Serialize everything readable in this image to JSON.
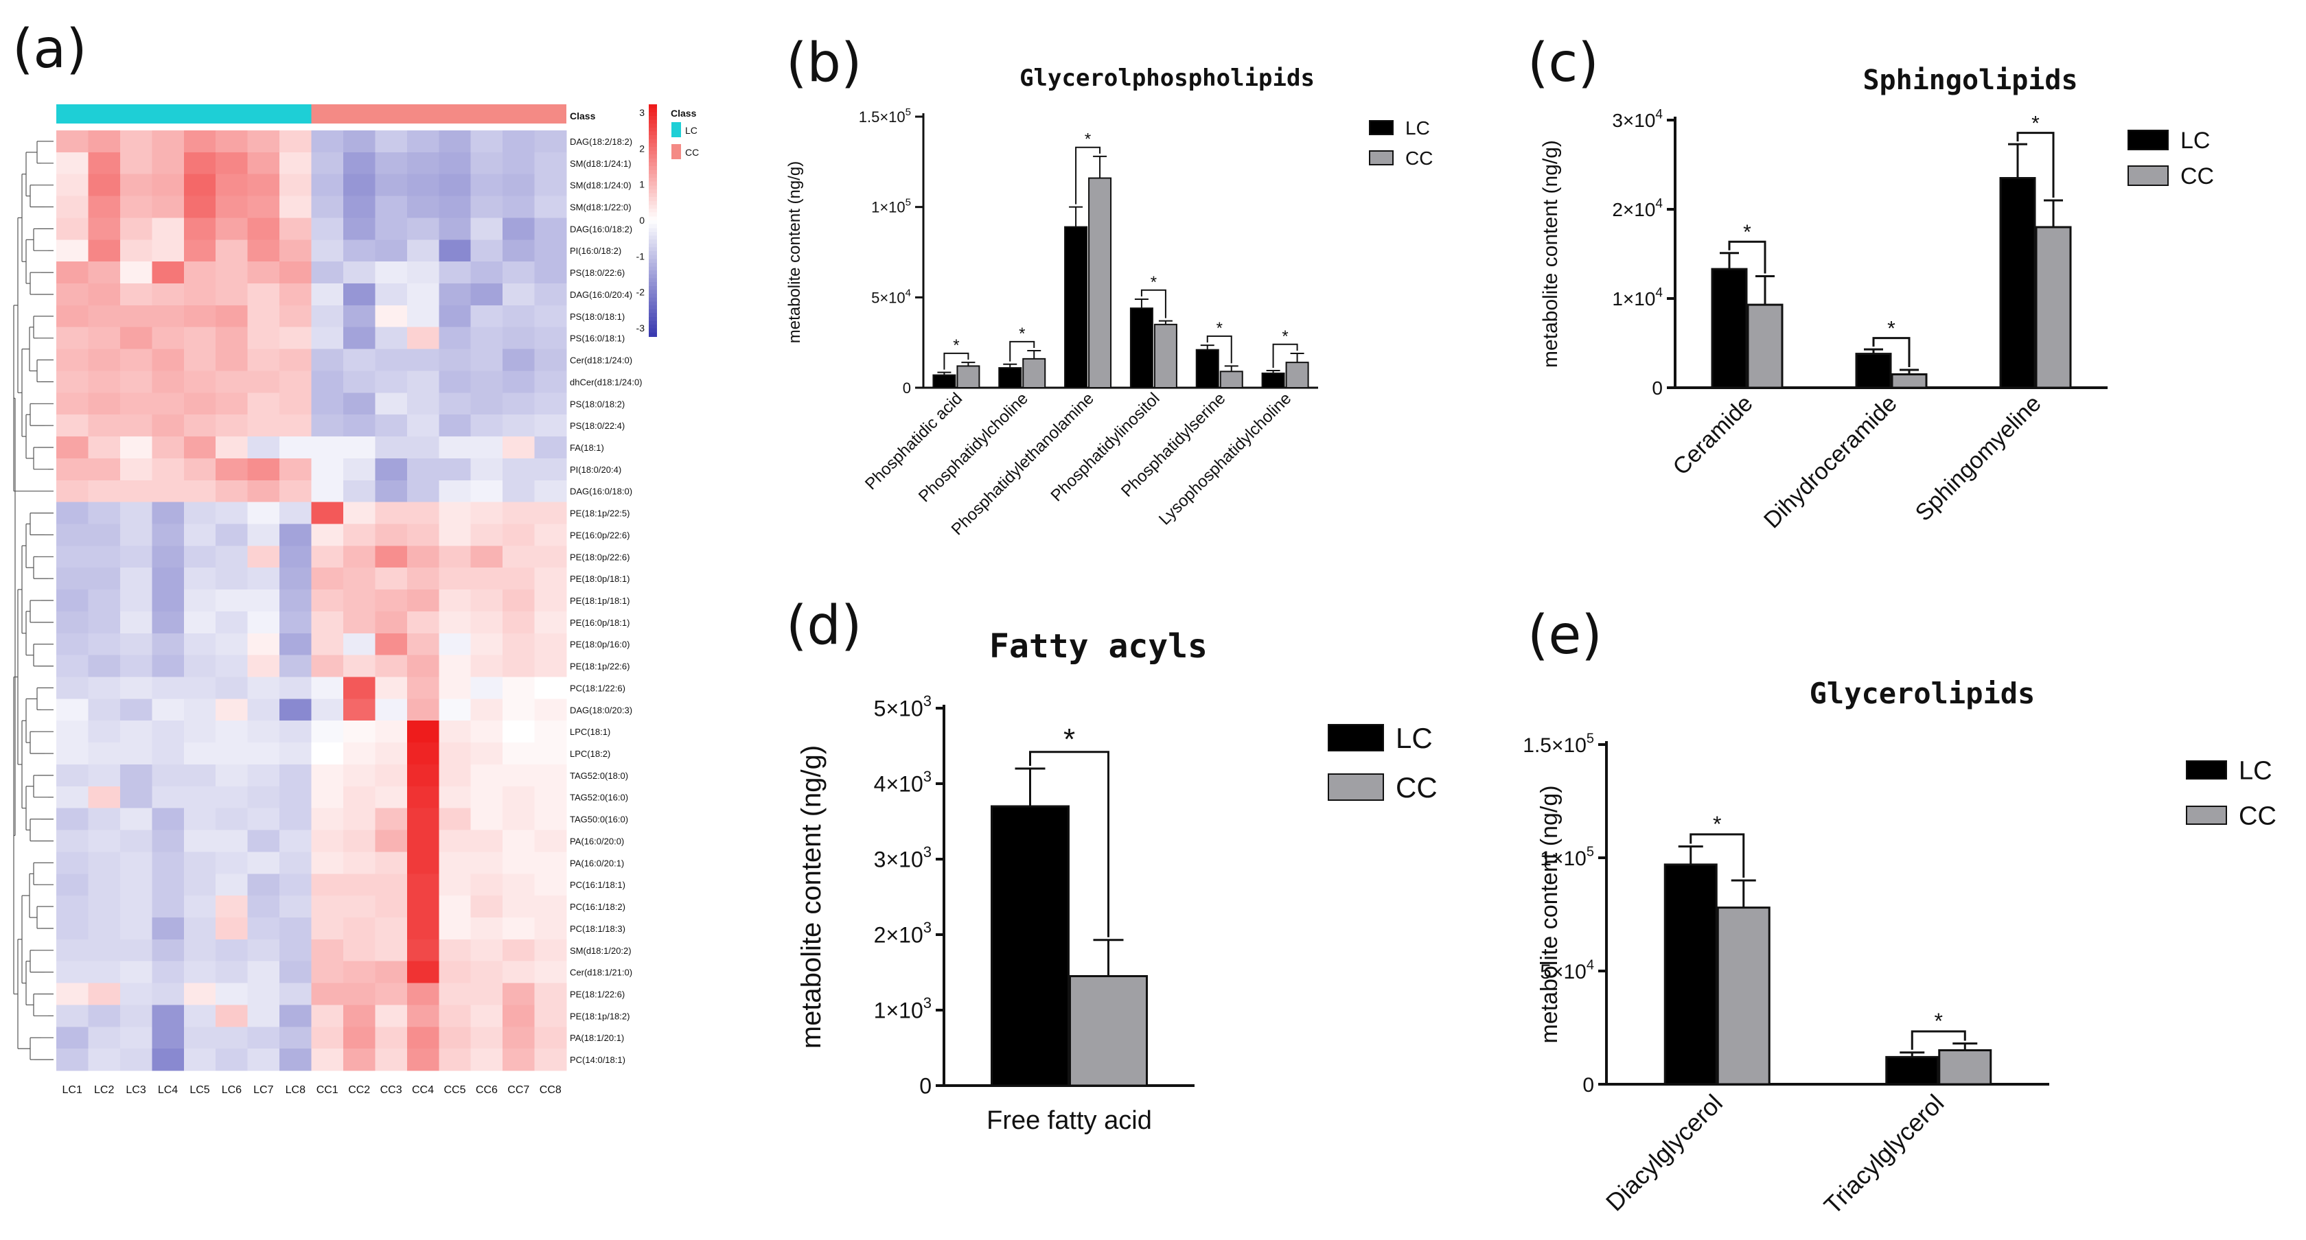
{
  "panel_letters": [
    "(a)",
    "(b)",
    "(c)",
    "(d)",
    "(e)"
  ],
  "colors": {
    "LC": "#000000",
    "CC": "#a0a0a4",
    "lc_class": "#1ecfd6",
    "cc_class": "#f48a85",
    "hm_high": "#ee1c1c",
    "hm_low": "#3a3ab0"
  },
  "heatmap": {
    "class_label": "Class",
    "legend_title": "Class",
    "legend_groups": [
      "LC",
      "CC"
    ],
    "scale_ticks": [
      "3",
      "2",
      "1",
      "0",
      "-1",
      "-2",
      "-3"
    ],
    "columns": [
      "LC1",
      "LC2",
      "LC3",
      "LC4",
      "LC5",
      "LC6",
      "LC7",
      "LC8",
      "CC1",
      "CC2",
      "CC3",
      "CC4",
      "CC5",
      "CC6",
      "CC7",
      "CC8"
    ],
    "rows": [
      "DAG(18:2/18:2)",
      "SM(d18:1/24:1)",
      "SM(d18:1/24:0)",
      "SM(d18:1/22:0)",
      "DAG(16:0/18:2)",
      "PI(16:0/18:2)",
      "PS(18:0/22:6)",
      "DAG(16:0/20:4)",
      "PS(18:0/18:1)",
      "PS(16:0/18:1)",
      "Cer(d18:1/24:0)",
      "dhCer(d18:1/24:0)",
      "PS(18:0/18:2)",
      "PS(18:0/22:4)",
      "FA(18:1)",
      "PI(18:0/20:4)",
      "DAG(16:0/18:0)",
      "PE(18:1p/22:5)",
      "PE(16:0p/22:6)",
      "PE(18:0p/22:6)",
      "PE(18:0p/18:1)",
      "PE(18:1p/18:1)",
      "PE(16:0p/18:1)",
      "PE(18:0p/16:0)",
      "PE(18:1p/22:6)",
      "PC(18:1/22:6)",
      "DAG(18:0/20:3)",
      "LPC(18:1)",
      "LPC(18:2)",
      "TAG52:0(18:0)",
      "TAG52:0(16:0)",
      "TAG50:0(16:0)",
      "PA(16:0/20:0)",
      "PA(16:0/20:1)",
      "PC(16:1/18:1)",
      "PC(16:1/18:2)",
      "PC(18:1/18:3)",
      "SM(d18:1/20:2)",
      "Cer(d18:1/21:0)",
      "PE(18:1/22:6)",
      "PE(18:1p/18:2)",
      "PA(18:1/20:1)",
      "PC(14:0/18:1)"
    ],
    "values": [
      [
        1.0,
        1.2,
        0.8,
        1.0,
        1.4,
        1.2,
        1.0,
        0.6,
        -1.0,
        -1.2,
        -0.8,
        -1.0,
        -1.2,
        -0.8,
        -1.0,
        -0.9
      ],
      [
        0.3,
        1.6,
        0.8,
        1.0,
        1.8,
        1.6,
        1.2,
        0.4,
        -0.9,
        -1.5,
        -1.1,
        -1.2,
        -1.3,
        -0.9,
        -1.0,
        -0.8
      ],
      [
        0.4,
        1.7,
        1.0,
        1.1,
        2.0,
        1.5,
        1.4,
        0.5,
        -1.0,
        -1.6,
        -1.2,
        -1.3,
        -1.4,
        -1.0,
        -1.1,
        -0.8
      ],
      [
        0.5,
        1.5,
        0.9,
        1.0,
        1.9,
        1.4,
        1.3,
        0.4,
        -0.9,
        -1.5,
        -1.0,
        -1.2,
        -1.3,
        -0.9,
        -1.0,
        -0.7
      ],
      [
        0.6,
        1.4,
        0.7,
        0.4,
        1.6,
        1.2,
        1.5,
        0.8,
        -0.7,
        -1.4,
        -1.0,
        -0.9,
        -1.2,
        -0.6,
        -1.4,
        -1.0
      ],
      [
        0.2,
        1.6,
        0.5,
        0.4,
        1.5,
        0.8,
        1.4,
        1.0,
        -0.6,
        -1.0,
        -1.1,
        -0.6,
        -1.8,
        -0.8,
        -1.2,
        -1.0
      ],
      [
        1.2,
        1.0,
        0.2,
        1.8,
        0.9,
        0.8,
        1.0,
        1.2,
        -0.9,
        -0.6,
        -0.3,
        -0.4,
        -0.8,
        -1.0,
        -0.8,
        -1.0
      ],
      [
        1.0,
        1.1,
        0.7,
        0.8,
        0.9,
        0.8,
        0.6,
        0.9,
        -0.4,
        -1.6,
        -0.5,
        -0.3,
        -1.2,
        -1.4,
        -0.6,
        -0.8
      ],
      [
        1.1,
        1.0,
        1.0,
        1.0,
        1.1,
        1.2,
        0.6,
        0.8,
        -0.6,
        -1.2,
        0.2,
        -0.3,
        -1.3,
        -0.7,
        -0.8,
        -0.7
      ],
      [
        0.8,
        0.9,
        1.2,
        0.9,
        0.8,
        1.0,
        0.6,
        0.5,
        -0.5,
        -1.4,
        -0.6,
        0.6,
        -1.0,
        -0.8,
        -0.9,
        -0.8
      ],
      [
        0.9,
        1.0,
        0.9,
        1.1,
        0.8,
        1.0,
        0.7,
        0.8,
        -0.9,
        -0.7,
        -0.8,
        -0.8,
        -0.9,
        -0.8,
        -1.2,
        -0.9
      ],
      [
        0.8,
        0.9,
        0.8,
        1.0,
        0.9,
        0.8,
        0.8,
        0.7,
        -1.0,
        -0.8,
        -0.7,
        -0.6,
        -1.0,
        -0.9,
        -1.0,
        -0.8
      ],
      [
        0.9,
        1.0,
        0.9,
        0.9,
        1.0,
        0.9,
        0.6,
        0.7,
        -1.0,
        -1.2,
        -0.4,
        -0.6,
        -0.8,
        -0.9,
        -0.8,
        -0.7
      ],
      [
        0.6,
        0.8,
        0.8,
        1.0,
        0.8,
        0.7,
        0.6,
        0.6,
        -0.9,
        -1.0,
        -0.8,
        -0.5,
        -1.0,
        -0.7,
        -0.6,
        -0.5
      ],
      [
        1.2,
        0.6,
        0.2,
        0.8,
        1.2,
        0.4,
        -0.5,
        -0.2,
        -0.2,
        -0.2,
        -0.6,
        -0.6,
        -0.3,
        -0.3,
        0.4,
        -0.8
      ],
      [
        0.9,
        0.9,
        0.4,
        0.6,
        0.8,
        1.3,
        1.5,
        0.9,
        -0.2,
        -0.4,
        -1.4,
        -0.8,
        -0.8,
        -0.4,
        -0.6,
        -0.6
      ],
      [
        0.7,
        0.6,
        0.6,
        0.6,
        0.6,
        0.8,
        1.0,
        0.7,
        -0.2,
        -0.6,
        -1.2,
        -0.8,
        -0.3,
        -0.2,
        -0.6,
        -0.4
      ],
      [
        -1.0,
        -0.8,
        -0.6,
        -1.2,
        -0.6,
        -0.5,
        -0.2,
        -0.5,
        2.2,
        0.3,
        0.6,
        0.6,
        0.3,
        0.4,
        0.5,
        0.5
      ],
      [
        -0.9,
        -0.9,
        -0.6,
        -1.1,
        -0.5,
        -0.8,
        -0.4,
        -1.4,
        0.3,
        0.6,
        0.8,
        0.7,
        0.3,
        0.5,
        0.6,
        0.4
      ],
      [
        -0.8,
        -0.8,
        -0.7,
        -1.2,
        -0.7,
        -0.6,
        0.6,
        -1.3,
        0.6,
        0.9,
        1.5,
        1.0,
        0.7,
        1.0,
        0.5,
        0.5
      ],
      [
        -0.9,
        -0.9,
        -0.5,
        -1.3,
        -0.5,
        -0.6,
        -0.5,
        -1.2,
        0.9,
        0.8,
        0.6,
        0.8,
        0.6,
        0.6,
        0.6,
        0.4
      ],
      [
        -1.0,
        -0.8,
        -0.5,
        -1.3,
        -0.4,
        -0.3,
        -0.3,
        -1.1,
        0.7,
        0.8,
        0.9,
        1.0,
        0.4,
        0.5,
        0.7,
        0.4
      ],
      [
        -0.9,
        -0.8,
        -0.4,
        -1.2,
        -0.3,
        -0.5,
        -0.2,
        -1.0,
        0.5,
        0.8,
        1.0,
        0.6,
        0.3,
        0.4,
        0.6,
        0.3
      ],
      [
        -0.8,
        -0.7,
        -0.6,
        -0.9,
        -0.5,
        -0.4,
        0.2,
        -1.3,
        0.5,
        -0.3,
        1.5,
        0.8,
        -0.2,
        0.3,
        0.5,
        0.4
      ],
      [
        -0.7,
        -0.9,
        -0.7,
        -1.0,
        -0.6,
        -0.5,
        0.4,
        -0.9,
        0.8,
        0.5,
        0.7,
        1.0,
        0.2,
        0.4,
        0.5,
        0.4
      ],
      [
        -0.6,
        -0.5,
        -0.4,
        -0.5,
        -0.5,
        -0.6,
        -0.4,
        -0.5,
        -0.2,
        2.2,
        0.3,
        0.9,
        0.2,
        -0.2,
        0.1,
        0.0
      ],
      [
        -0.2,
        -0.6,
        -0.8,
        -0.3,
        -0.4,
        0.3,
        -0.5,
        -1.8,
        -0.4,
        2.0,
        -0.2,
        1.0,
        -0.1,
        0.3,
        0.1,
        0.2
      ],
      [
        -0.3,
        -0.5,
        -0.4,
        -0.5,
        -0.4,
        -0.3,
        -0.4,
        -0.5,
        -0.1,
        0.1,
        0.2,
        3.0,
        0.3,
        0.2,
        0.0,
        0.1
      ],
      [
        -0.3,
        -0.4,
        -0.4,
        -0.5,
        -0.3,
        -0.3,
        -0.3,
        -0.4,
        0.0,
        0.2,
        0.3,
        2.9,
        0.4,
        0.3,
        0.1,
        0.1
      ],
      [
        -0.6,
        -0.5,
        -0.9,
        -0.6,
        -0.6,
        -0.4,
        -0.5,
        -0.7,
        0.2,
        0.3,
        0.4,
        2.8,
        0.4,
        0.2,
        0.2,
        0.2
      ],
      [
        -0.4,
        0.6,
        -0.9,
        -0.5,
        -0.5,
        -0.5,
        -0.6,
        -0.7,
        0.2,
        0.4,
        0.3,
        2.7,
        0.3,
        0.2,
        0.3,
        0.2
      ],
      [
        -0.8,
        -0.6,
        -0.4,
        -1.0,
        -0.5,
        -0.6,
        -0.5,
        -0.7,
        0.3,
        0.4,
        0.8,
        2.6,
        0.6,
        0.2,
        0.3,
        0.2
      ],
      [
        -0.6,
        -0.5,
        -0.6,
        -0.9,
        -0.4,
        -0.4,
        -0.8,
        -0.5,
        0.4,
        0.5,
        1.0,
        2.6,
        0.4,
        0.4,
        0.2,
        0.3
      ],
      [
        -0.7,
        -0.6,
        -0.5,
        -0.8,
        -0.6,
        -0.5,
        -0.4,
        -0.6,
        0.3,
        0.4,
        0.5,
        2.6,
        0.3,
        0.3,
        0.2,
        0.2
      ],
      [
        -0.8,
        -0.6,
        -0.5,
        -0.8,
        -0.6,
        -0.4,
        -0.9,
        -0.7,
        0.6,
        0.6,
        0.6,
        2.5,
        0.3,
        0.4,
        0.3,
        0.2
      ],
      [
        -0.7,
        -0.6,
        -0.5,
        -0.8,
        -0.5,
        0.5,
        -0.8,
        -0.6,
        0.5,
        0.5,
        0.6,
        2.5,
        0.2,
        0.5,
        0.3,
        0.3
      ],
      [
        -0.7,
        -0.6,
        -0.5,
        -1.2,
        -0.6,
        0.6,
        -0.7,
        -0.8,
        0.5,
        0.6,
        0.5,
        2.5,
        0.2,
        0.3,
        0.2,
        0.3
      ],
      [
        -0.6,
        -0.6,
        -0.6,
        -0.9,
        -0.6,
        -0.7,
        -0.6,
        -0.8,
        0.8,
        0.6,
        0.5,
        2.4,
        0.5,
        0.4,
        0.6,
        0.4
      ],
      [
        -0.5,
        -0.5,
        -0.4,
        -0.7,
        -0.5,
        -0.6,
        -0.4,
        -0.9,
        0.8,
        0.9,
        1.0,
        2.7,
        0.6,
        0.5,
        0.4,
        0.3
      ],
      [
        0.3,
        0.6,
        -0.5,
        -0.6,
        0.3,
        -0.3,
        -0.4,
        -0.6,
        1.0,
        1.0,
        0.9,
        1.4,
        0.5,
        0.5,
        1.0,
        0.5
      ],
      [
        -0.6,
        -0.8,
        -0.6,
        -1.6,
        -0.5,
        0.7,
        -0.4,
        -1.2,
        0.5,
        1.2,
        0.4,
        1.2,
        0.6,
        0.4,
        1.1,
        0.5
      ],
      [
        -1.0,
        -0.6,
        -0.5,
        -1.6,
        -0.6,
        -0.6,
        -0.7,
        -0.9,
        0.6,
        1.3,
        0.6,
        1.5,
        0.7,
        0.5,
        1.0,
        0.6
      ],
      [
        -0.8,
        -0.5,
        -0.6,
        -1.8,
        -0.5,
        -0.7,
        -0.5,
        -1.2,
        0.4,
        1.1,
        0.5,
        1.4,
        0.6,
        0.4,
        0.9,
        0.5
      ]
    ]
  },
  "chart_data": [
    {
      "type": "bar",
      "title": "Glycerolphospholipids",
      "xlabel": "",
      "ylabel": "metabolite content (ng/g)",
      "ylim": [
        0,
        150000
      ],
      "y_ticks": [
        0,
        50000,
        100000,
        150000
      ],
      "y_tick_labels": [
        [
          "0"
        ],
        [
          "5×10",
          "4"
        ],
        [
          "1×10",
          "5"
        ],
        [
          "1.5×10",
          "5"
        ]
      ],
      "categories": [
        "Phosphatidic acid",
        "Phosphatidylcholine",
        "Phosphatidylethanolamine",
        "Phosphatidylinositol",
        "Phosphatidylserine",
        "Lysophosphatidylcholine"
      ],
      "series": [
        {
          "name": "LC",
          "values": [
            7000,
            11000,
            89000,
            44000,
            21000,
            8000
          ],
          "errors": [
            1500,
            2000,
            11000,
            5000,
            2500,
            1500
          ]
        },
        {
          "name": "CC",
          "values": [
            12000,
            16000,
            116000,
            35000,
            9000,
            14000
          ],
          "errors": [
            2000,
            4500,
            12000,
            2000,
            3000,
            5000
          ]
        }
      ],
      "significance": [
        "*",
        "*",
        "*",
        "*",
        "*",
        "*"
      ],
      "legend": [
        "LC",
        "CC"
      ],
      "legend_position": "top-right"
    },
    {
      "type": "bar",
      "title": "Sphingolipids",
      "xlabel": "",
      "ylabel": "metabolite content (ng/g)",
      "ylim": [
        0,
        30000
      ],
      "y_ticks": [
        0,
        10000,
        20000,
        30000
      ],
      "y_tick_labels": [
        [
          "0"
        ],
        [
          "1×10",
          "4"
        ],
        [
          "2×10",
          "4"
        ],
        [
          "3×10",
          "4"
        ]
      ],
      "categories": [
        "Ceramide",
        "Dihydroceramide",
        "Sphingomyeline"
      ],
      "series": [
        {
          "name": "LC",
          "values": [
            13300,
            3800,
            23500
          ],
          "errors": [
            1800,
            500,
            3800
          ]
        },
        {
          "name": "CC",
          "values": [
            9300,
            1500,
            18000
          ],
          "errors": [
            3200,
            500,
            3000
          ]
        }
      ],
      "significance": [
        "*",
        "*",
        "*"
      ],
      "legend": [
        "LC",
        "CC"
      ],
      "legend_position": "top-right"
    },
    {
      "type": "bar",
      "title": "Fatty acyls",
      "xlabel": "",
      "ylabel": "metabolite content (ng/g)",
      "ylim": [
        0,
        5000
      ],
      "y_ticks": [
        0,
        1000,
        2000,
        3000,
        4000,
        5000
      ],
      "y_tick_labels": [
        [
          "0"
        ],
        [
          "1×10",
          "3"
        ],
        [
          "2×10",
          "3"
        ],
        [
          "3×10",
          "3"
        ],
        [
          "4×10",
          "3"
        ],
        [
          "5×10",
          "3"
        ]
      ],
      "categories": [
        "Free fatty acid"
      ],
      "series": [
        {
          "name": "LC",
          "values": [
            3700
          ],
          "errors": [
            500
          ]
        },
        {
          "name": "CC",
          "values": [
            1450
          ],
          "errors": [
            480
          ]
        }
      ],
      "significance": [
        "*"
      ],
      "legend": [
        "LC",
        "CC"
      ],
      "legend_position": "right"
    },
    {
      "type": "bar",
      "title": "Glycerolipids",
      "xlabel": "",
      "ylabel": "metabolite content (ng/g)",
      "ylim": [
        0,
        150000
      ],
      "y_ticks": [
        0,
        50000,
        100000,
        150000
      ],
      "y_tick_labels": [
        [
          "0"
        ],
        [
          "5×10",
          "4"
        ],
        [
          "1×10",
          "5"
        ],
        [
          "1.5×10",
          "5"
        ]
      ],
      "categories": [
        "Diacylglycerol",
        "Triacylglycerol"
      ],
      "series": [
        {
          "name": "LC",
          "values": [
            97000,
            12000
          ],
          "errors": [
            8000,
            2000
          ]
        },
        {
          "name": "CC",
          "values": [
            78000,
            15000
          ],
          "errors": [
            12000,
            3000
          ]
        }
      ],
      "significance": [
        "*",
        "*"
      ],
      "legend": [
        "LC",
        "CC"
      ],
      "legend_position": "right"
    }
  ]
}
